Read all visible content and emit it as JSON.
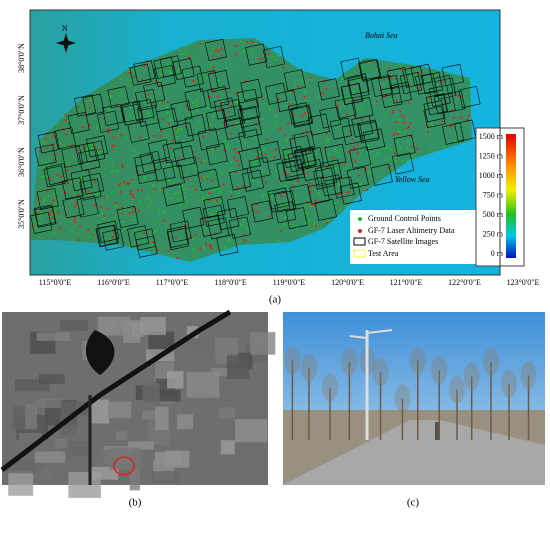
{
  "map": {
    "north": "N",
    "seas": [
      "Bohai Sea",
      "Yellow Sea"
    ],
    "longitudes": [
      "115°0'0\"E",
      "116°0'0\"E",
      "117°0'0\"E",
      "118°0'0\"E",
      "119°0'0\"E",
      "120°0'0\"E",
      "121°0'0\"E",
      "122°0'0\"E",
      "123°0'0\"E"
    ],
    "latitudes": [
      "38°0'0\"N",
      "37°0'0\"N",
      "36°0'0\"N",
      "35°0'0\"N"
    ],
    "colorbar": [
      "1500 m",
      "1250 m",
      "1000 m",
      "750 m",
      "500 m",
      "250 m",
      "0 m"
    ],
    "legend": [
      "Ground Control Points",
      "GF-7 Laser Altimetry Data",
      "GF-7 Satellite Images",
      "Test Area"
    ]
  },
  "captions": [
    "(a)",
    "(b)",
    "(c)"
  ]
}
